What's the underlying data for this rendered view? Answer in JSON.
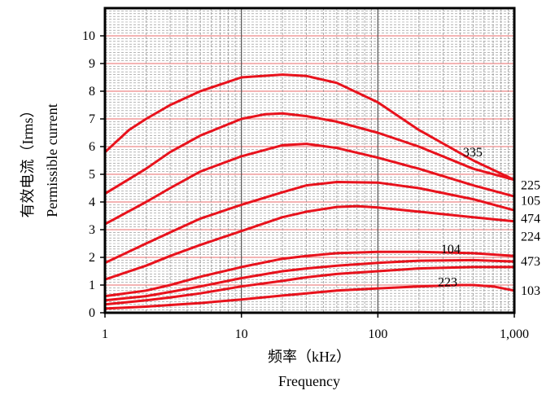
{
  "chart_data": {
    "type": "line",
    "x_scale": "log",
    "xlim": [
      1,
      1000
    ],
    "ylim": [
      0,
      11
    ],
    "x_ticks": [
      "1",
      "10",
      "100",
      "1,000"
    ],
    "y_ticks": [
      "0",
      "1",
      "2",
      "3",
      "4",
      "5",
      "6",
      "7",
      "8",
      "9",
      "10"
    ],
    "xlabel_cn": "频率（kHz）",
    "xlabel_en": "Frequency",
    "ylabel_cn": "有效电流（Irms）",
    "ylabel_en": "Permissible current",
    "grid": true,
    "line_color": "#e8121c",
    "series": [
      {
        "name": "335",
        "x": [
          1,
          1.5,
          2,
          3,
          5,
          10,
          20,
          30,
          50,
          100,
          200,
          500,
          1000
        ],
        "y": [
          5.8,
          6.6,
          7.0,
          7.5,
          8.0,
          8.5,
          8.6,
          8.55,
          8.3,
          7.6,
          6.6,
          5.5,
          4.8
        ]
      },
      {
        "name": "225",
        "x": [
          1,
          2,
          3,
          5,
          10,
          15,
          20,
          30,
          50,
          100,
          200,
          500,
          1000
        ],
        "y": [
          4.3,
          5.2,
          5.8,
          6.4,
          7.0,
          7.17,
          7.2,
          7.1,
          6.9,
          6.5,
          6.0,
          5.2,
          4.8
        ]
      },
      {
        "name": "105",
        "x": [
          1,
          2,
          3,
          5,
          10,
          20,
          30,
          50,
          100,
          200,
          500,
          1000
        ],
        "y": [
          3.2,
          4.0,
          4.5,
          5.1,
          5.65,
          6.05,
          6.1,
          5.95,
          5.6,
          5.2,
          4.6,
          4.2
        ]
      },
      {
        "name": "474",
        "x": [
          1,
          2,
          3,
          5,
          10,
          20,
          30,
          50,
          100,
          200,
          500,
          1000
        ],
        "y": [
          1.8,
          2.5,
          2.9,
          3.4,
          3.9,
          4.35,
          4.6,
          4.72,
          4.7,
          4.5,
          4.1,
          3.7
        ]
      },
      {
        "name": "224",
        "x": [
          1,
          2,
          3,
          5,
          10,
          20,
          30,
          50,
          70,
          100,
          200,
          500,
          1000
        ],
        "y": [
          1.2,
          1.7,
          2.05,
          2.45,
          2.95,
          3.45,
          3.65,
          3.82,
          3.85,
          3.8,
          3.65,
          3.45,
          3.3
        ]
      },
      {
        "name": "104",
        "x": [
          1,
          2,
          3,
          5,
          10,
          20,
          30,
          50,
          100,
          200,
          500,
          1000
        ],
        "y": [
          0.6,
          0.8,
          1.0,
          1.3,
          1.65,
          1.95,
          2.05,
          2.15,
          2.2,
          2.2,
          2.15,
          2.05
        ]
      },
      {
        "name": "473",
        "x": [
          1,
          2,
          3,
          5,
          10,
          20,
          30,
          50,
          100,
          200,
          500,
          1000
        ],
        "y": [
          0.45,
          0.6,
          0.75,
          0.95,
          1.25,
          1.5,
          1.6,
          1.7,
          1.8,
          1.88,
          1.9,
          1.85
        ]
      },
      {
        "name": "223",
        "x": [
          1,
          2,
          3,
          5,
          10,
          20,
          30,
          50,
          100,
          200,
          500,
          1000
        ],
        "y": [
          0.3,
          0.45,
          0.55,
          0.7,
          0.95,
          1.15,
          1.28,
          1.4,
          1.5,
          1.6,
          1.65,
          1.65
        ]
      },
      {
        "name": "103",
        "x": [
          1,
          2,
          3,
          5,
          10,
          20,
          30,
          50,
          100,
          200,
          400,
          500,
          700,
          1000
        ],
        "y": [
          0.15,
          0.22,
          0.28,
          0.35,
          0.48,
          0.62,
          0.7,
          0.8,
          0.88,
          0.95,
          1.0,
          1.0,
          0.95,
          0.8
        ]
      }
    ],
    "labels": [
      {
        "text": "335",
        "x": 420,
        "y": 5.8
      },
      {
        "text": "225",
        "x": 1400,
        "y": 4.6
      },
      {
        "text": "105",
        "x": 1400,
        "y": 4.05
      },
      {
        "text": "474",
        "x": 1400,
        "y": 3.4
      },
      {
        "text": "224",
        "x": 1400,
        "y": 2.75
      },
      {
        "text": "104",
        "x": 290,
        "y": 2.3
      },
      {
        "text": "473",
        "x": 1400,
        "y": 1.85
      },
      {
        "text": "223",
        "x": 275,
        "y": 1.1
      },
      {
        "text": "103",
        "x": 1400,
        "y": 0.8
      }
    ]
  }
}
